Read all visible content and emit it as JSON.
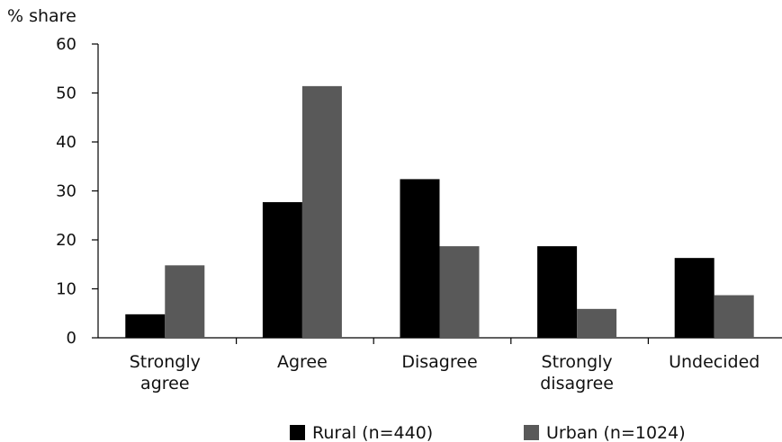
{
  "chart_data": {
    "type": "bar",
    "title": "",
    "ylabel": "% share",
    "xlabel": "",
    "ylim": [
      0,
      60
    ],
    "yticks": [
      0,
      10,
      20,
      30,
      40,
      50,
      60
    ],
    "categories": [
      [
        "Strongly",
        "agree"
      ],
      [
        "Agree"
      ],
      [
        "Disagree"
      ],
      [
        "Strongly",
        "disagree"
      ],
      [
        "Undecided"
      ]
    ],
    "series": [
      {
        "name": "Rural (n=440)",
        "color": "#000000",
        "values": [
          4.8,
          27.7,
          32.4,
          18.7,
          16.3
        ]
      },
      {
        "name": "Urban (n=1024)",
        "color": "#595959",
        "values": [
          14.8,
          51.4,
          18.7,
          5.9,
          8.7
        ]
      }
    ],
    "grid": false,
    "legend_position": "bottom"
  }
}
